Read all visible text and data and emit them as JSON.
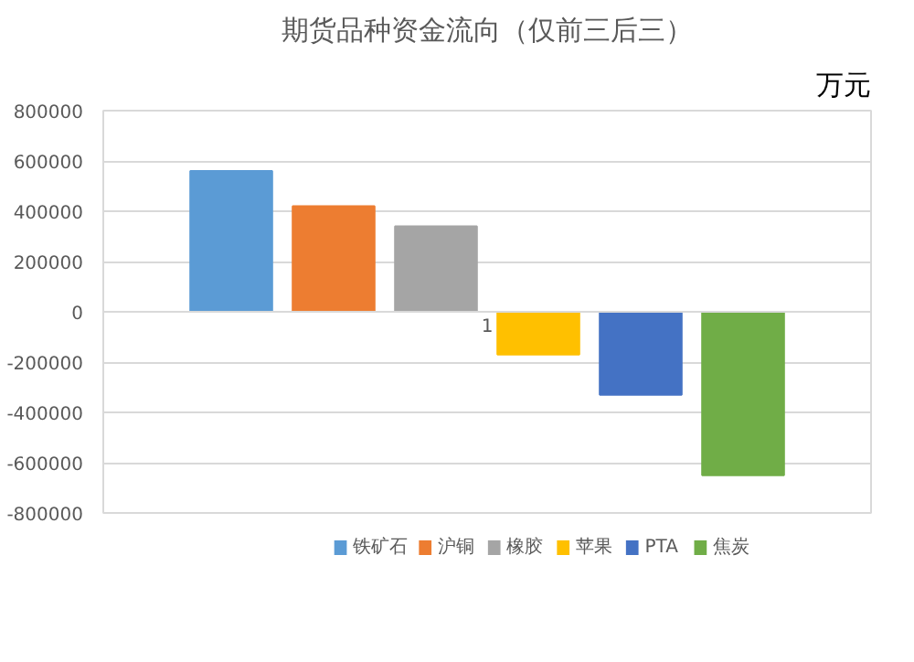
{
  "chart_data": {
    "type": "bar",
    "title": "期货品种资金流向（仅前三后三）",
    "annotations": [
      "万元"
    ],
    "categories": [
      "1"
    ],
    "series": [
      {
        "name": "铁矿石",
        "color": "#5b9bd5",
        "values": [
          560000
        ]
      },
      {
        "name": "沪铜",
        "color": "#ed7d31",
        "values": [
          420000
        ]
      },
      {
        "name": "橡胶",
        "color": "#a5a5a5",
        "values": [
          340000
        ]
      },
      {
        "name": "苹果",
        "color": "#ffc000",
        "values": [
          -170000
        ]
      },
      {
        "name": "PTA",
        "color": "#4472c4",
        "values": [
          -330000
        ]
      },
      {
        "name": "焦炭",
        "color": "#70ad47",
        "values": [
          -650000
        ]
      }
    ],
    "ylim": [
      -800000,
      800000
    ],
    "yticks": [
      -800000,
      -600000,
      -400000,
      -200000,
      0,
      200000,
      400000,
      600000,
      800000
    ],
    "grid": "y",
    "legend": "bottom"
  }
}
